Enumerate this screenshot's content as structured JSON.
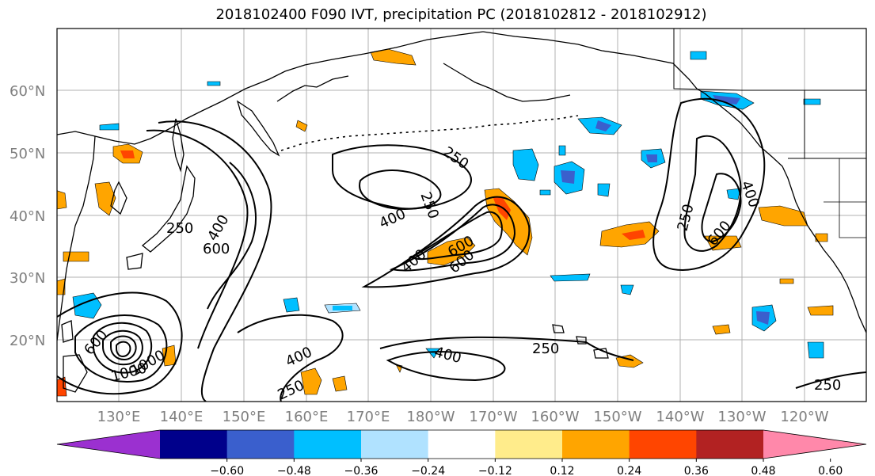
{
  "title": "2018102400 F090 IVT, precipitation PC (2018102812 - 2018102912)",
  "lat_labels": [
    "60°N",
    "50°N",
    "40°N",
    "30°N",
    "20°N"
  ],
  "lon_labels": [
    "130°E",
    "140°E",
    "150°E",
    "160°E",
    "170°E",
    "180°W",
    "170°W",
    "160°W",
    "150°W",
    "140°W",
    "130°W",
    "120°W"
  ],
  "colorbar": {
    "colors": [
      "#9b30d0",
      "#00008b",
      "#3a5fcd",
      "#00bfff",
      "#b0e2ff",
      "#ffffff",
      "#ffec8b",
      "#ffa500",
      "#ff4500",
      "#b22222",
      "#ff88aa"
    ],
    "ticks": [
      "−0.60",
      "−0.48",
      "−0.36",
      "−0.24",
      "−0.12",
      "0.12",
      "0.24",
      "0.36",
      "0.48",
      "0.60"
    ]
  },
  "ivt_contour_labels": [
    "250",
    "400",
    "600",
    "250",
    "400",
    "600",
    "250",
    "400",
    "600",
    "400",
    "250",
    "250",
    "400",
    "250",
    "400",
    "600",
    "250",
    "600",
    "1000",
    "1000",
    "800",
    "800"
  ],
  "ivt_contour_levels": [
    250,
    400,
    600,
    800,
    1000
  ],
  "precip_pc_levels": [
    -0.6,
    -0.48,
    -0.36,
    -0.24,
    -0.12,
    0.12,
    0.24,
    0.36,
    0.48,
    0.6
  ]
}
